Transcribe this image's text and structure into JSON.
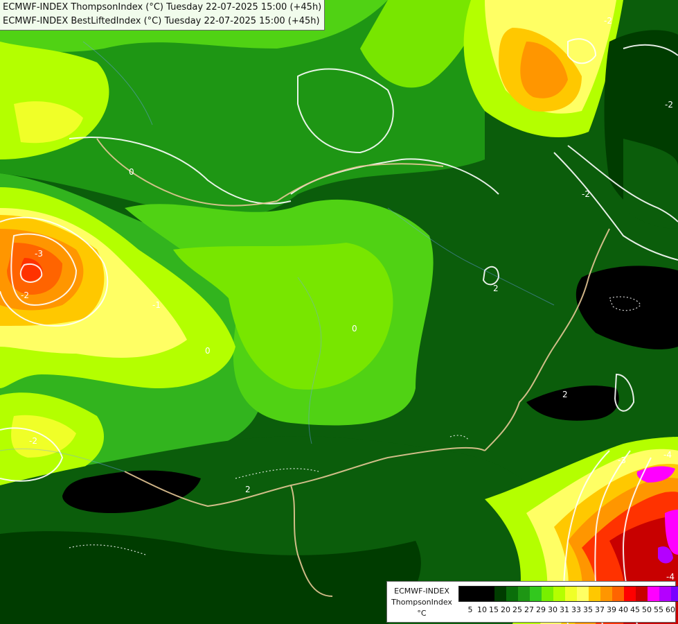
{
  "header": {
    "line1": "ECMWF-INDEX ThompsonIndex (°C) Tuesday 22-07-2025 15:00 (+45h)",
    "line2": "ECMWF-INDEX BestLiftedIndex (°C) Tuesday 22-07-2025 15:00 (+45h)"
  },
  "legend": {
    "model": "ECMWF-INDEX",
    "parameter": "ThompsonIndex",
    "unit": "°C",
    "ticks": [
      "5",
      "10",
      "15",
      "20",
      "25",
      "27",
      "29",
      "30",
      "31",
      "33",
      "35",
      "37",
      "39",
      "40",
      "45",
      "50",
      "55",
      "60"
    ],
    "colors": [
      "#000000",
      "#000000",
      "#000000",
      "#003c00",
      "#0a6e0a",
      "#1e9614",
      "#32c81e",
      "#78f000",
      "#b4ff00",
      "#f0ff28",
      "#ffff64",
      "#ffc800",
      "#ff9600",
      "#ff6400",
      "#ff0000",
      "#c80000",
      "#ff00ff",
      "#b400ff",
      "#7800ff",
      "#0000ff"
    ]
  },
  "contour_labels": [
    "-3",
    "-2",
    "-2",
    "-2",
    "0",
    "0",
    "-1",
    "0",
    "2",
    "2",
    "2",
    "-3",
    "-4",
    "-4",
    "-2",
    "-2"
  ]
}
